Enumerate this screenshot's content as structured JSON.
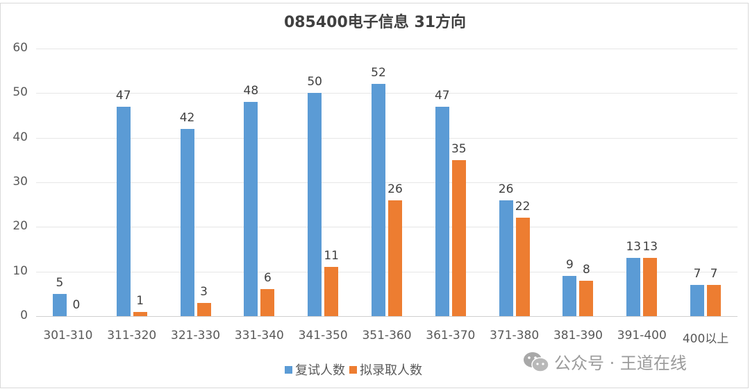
{
  "chart_data": {
    "type": "bar",
    "title": "085400电子信息 31方向",
    "xlabel": "",
    "ylabel": "",
    "ylim": [
      0,
      60
    ],
    "yticks": [
      0,
      10,
      20,
      30,
      40,
      50,
      60
    ],
    "grid": true,
    "legend_position": "bottom",
    "categories": [
      "301-310",
      "311-320",
      "321-330",
      "331-340",
      "341-350",
      "351-360",
      "361-370",
      "371-380",
      "381-390",
      "391-400",
      "400以上"
    ],
    "series": [
      {
        "name": "复试人数",
        "color": "#5b9bd5",
        "values": [
          5,
          47,
          42,
          48,
          50,
          52,
          47,
          26,
          9,
          13,
          7
        ]
      },
      {
        "name": "拟录取人数",
        "color": "#ed7d31",
        "values": [
          0,
          1,
          3,
          6,
          11,
          26,
          35,
          22,
          8,
          13,
          7
        ]
      }
    ]
  },
  "watermark": {
    "icon": "wechat-icon",
    "text": "公众号 · 王道在线"
  }
}
